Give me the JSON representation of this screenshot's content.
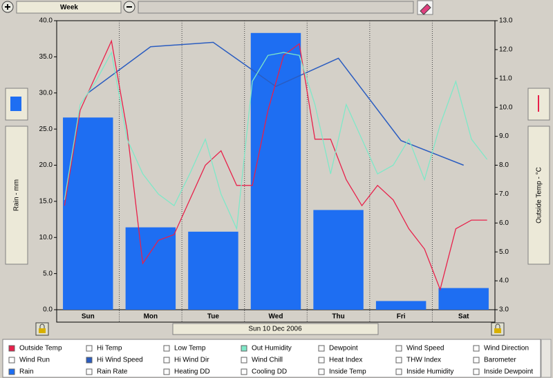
{
  "toolbar": {
    "range": "Week"
  },
  "chart_data": {
    "type": "bar",
    "categories": [
      "Sun",
      "Mon",
      "Tue",
      "Wed",
      "Thu",
      "Fri",
      "Sat"
    ],
    "x_label": "Sun 10 Dec 2006",
    "ylabel": "Rain - mm",
    "y2label": "Outside Temp - °C",
    "ylim": [
      0,
      40
    ],
    "yticks": [
      {
        "value": 0,
        "label": "0.0"
      },
      {
        "value": 5,
        "label": "5.0"
      },
      {
        "value": 10,
        "label": "10.0"
      },
      {
        "value": 15,
        "label": "15.0"
      },
      {
        "value": 20,
        "label": "20.0"
      },
      {
        "value": 25,
        "label": "25.0"
      },
      {
        "value": 30,
        "label": "30.0"
      },
      {
        "value": 35,
        "label": "35.0"
      },
      {
        "value": 40,
        "label": "40.0"
      }
    ],
    "y2lim": [
      3,
      13
    ],
    "y2ticks": [
      {
        "value": 3,
        "label": "3.0"
      },
      {
        "value": 4,
        "label": "4.0"
      },
      {
        "value": 5,
        "label": "5.0"
      },
      {
        "value": 6,
        "label": "6.0"
      },
      {
        "value": 7,
        "label": "7.0"
      },
      {
        "value": 8,
        "label": "8.0"
      },
      {
        "value": 9,
        "label": "9.0"
      },
      {
        "value": 10,
        "label": "10.0"
      },
      {
        "value": 11,
        "label": "11.0"
      },
      {
        "value": 12,
        "label": "12.0"
      },
      {
        "value": 13,
        "label": "13.0"
      }
    ],
    "grid": true,
    "series": [
      {
        "type": "bar",
        "color": "#1e6ef2",
        "values": [
          26.6,
          11.4,
          10.8,
          38.3,
          13.8,
          1.2,
          3.0
        ]
      },
      {
        "type": "line",
        "color": "#2a5cc0",
        "values": [
          30.0,
          36.4,
          37.0,
          30.9,
          34.8,
          23.4,
          20.0
        ]
      }
    ],
    "detail_series": [
      {
        "axis": "y2",
        "color": "#e8204a",
        "values": [
          6.6,
          9.9,
          11.1,
          12.3,
          9.2,
          4.6,
          5.4,
          5.6,
          6.8,
          8.0,
          8.5,
          7.3,
          7.3,
          9.9,
          11.8,
          12.2,
          8.9,
          8.9,
          7.5,
          6.6,
          7.3,
          6.8,
          5.8,
          5.1,
          3.7,
          5.8,
          6.1,
          6.1
        ]
      },
      {
        "axis": "y2",
        "color": "#7fe8c8",
        "values": [
          6.8,
          10.1,
          10.9,
          11.9,
          8.9,
          7.7,
          7.0,
          6.6,
          7.7,
          8.9,
          7.0,
          5.8,
          10.9,
          11.8,
          11.9,
          11.8,
          10.1,
          7.7,
          10.1,
          8.9,
          7.7,
          8.0,
          8.9,
          7.5,
          9.4,
          10.9,
          8.9,
          8.2
        ]
      }
    ]
  },
  "legend": {
    "items": [
      {
        "name": "Outside Temp",
        "checked": true,
        "color": "#e8204a"
      },
      {
        "name": "Hi Temp",
        "checked": false
      },
      {
        "name": "Low Temp",
        "checked": false
      },
      {
        "name": "Out Humidity",
        "checked": true,
        "color": "#7fe8c8"
      },
      {
        "name": "Dewpoint",
        "checked": false
      },
      {
        "name": "Wind Speed",
        "checked": false
      },
      {
        "name": "Wind Direction",
        "checked": false
      },
      {
        "name": "Wind Run",
        "checked": false
      },
      {
        "name": "Hi Wind Speed",
        "checked": true,
        "color": "#2a5cc0"
      },
      {
        "name": "Hi Wind Dir",
        "checked": false
      },
      {
        "name": "Wind Chill",
        "checked": false
      },
      {
        "name": "Heat Index",
        "checked": false
      },
      {
        "name": "THW Index",
        "checked": false
      },
      {
        "name": "Barometer",
        "checked": false
      },
      {
        "name": "Rain",
        "checked": true,
        "color": "#1e6ef2"
      },
      {
        "name": "Rain Rate",
        "checked": false
      },
      {
        "name": "Heating DD",
        "checked": false
      },
      {
        "name": "Cooling DD",
        "checked": false
      },
      {
        "name": "Inside Temp",
        "checked": false
      },
      {
        "name": "Inside Humidity",
        "checked": false
      },
      {
        "name": "Inside Dewpoint",
        "checked": false
      }
    ]
  }
}
